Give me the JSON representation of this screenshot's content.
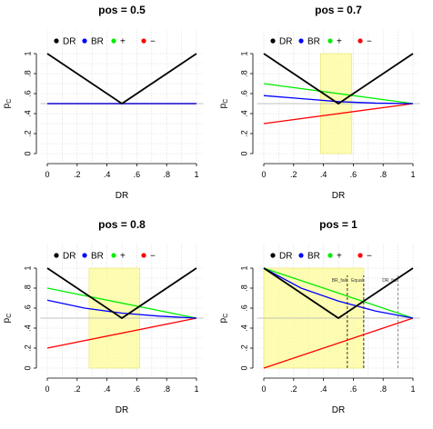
{
  "chart_data": [
    {
      "type": "line",
      "title": "pos = 0.5",
      "xlabel": "DR",
      "ylabel": "p_C",
      "xlim": [
        0,
        1
      ],
      "ylim": [
        0,
        1
      ],
      "x_ticks": [
        "0",
        ".2",
        ".4",
        ".6",
        ".8",
        "1"
      ],
      "y_ticks": [
        "0",
        ".2",
        ".4",
        ".6",
        ".8",
        "1"
      ],
      "grid": true,
      "legend": {
        "position": "top-left",
        "entries": [
          "DR",
          "BR",
          "+",
          "−"
        ]
      },
      "series": [
        {
          "name": "DR",
          "color": "#000000",
          "points": [
            [
              0,
              1
            ],
            [
              0.5,
              0.5
            ],
            [
              1,
              1
            ]
          ]
        },
        {
          "name": "BR",
          "color": "#0000ff",
          "points": [
            [
              0,
              0.5
            ],
            [
              1,
              0.5
            ]
          ]
        },
        {
          "name": "+",
          "color": "#00ee00",
          "points": [
            [
              0,
              0.5
            ],
            [
              1,
              0.5
            ]
          ]
        },
        {
          "name": "−",
          "color": "#ff0000",
          "points": [
            [
              0,
              0.5
            ],
            [
              1,
              0.5
            ]
          ]
        }
      ],
      "highlight": null,
      "annotations": []
    },
    {
      "type": "line",
      "title": "pos = 0.7",
      "xlabel": "DR",
      "ylabel": "p_C",
      "xlim": [
        0,
        1
      ],
      "ylim": [
        0,
        1
      ],
      "x_ticks": [
        "0",
        ".2",
        ".4",
        ".6",
        ".8",
        "1"
      ],
      "y_ticks": [
        "0",
        ".2",
        ".4",
        ".6",
        ".8",
        "1"
      ],
      "grid": true,
      "legend": {
        "position": "top-left",
        "entries": [
          "DR",
          "BR",
          "+",
          "−"
        ]
      },
      "series": [
        {
          "name": "DR",
          "color": "#000000",
          "points": [
            [
              0,
              1
            ],
            [
              0.5,
              0.5
            ],
            [
              1,
              1
            ]
          ]
        },
        {
          "name": "BR",
          "color": "#0000ff",
          "points": [
            [
              0,
              0.58
            ],
            [
              0.25,
              0.55
            ],
            [
              0.5,
              0.52
            ],
            [
              0.75,
              0.505
            ],
            [
              1,
              0.5
            ]
          ]
        },
        {
          "name": "+",
          "color": "#00ee00",
          "points": [
            [
              0,
              0.7
            ],
            [
              1,
              0.5
            ]
          ]
        },
        {
          "name": "−",
          "color": "#ff0000",
          "points": [
            [
              0,
              0.3
            ],
            [
              1,
              0.5
            ]
          ]
        }
      ],
      "highlight": {
        "x": [
          0.38,
          0.59
        ],
        "y": [
          0,
          1
        ],
        "color": "#ffff99"
      },
      "annotations": []
    },
    {
      "type": "line",
      "title": "pos = 0.8",
      "xlabel": "DR",
      "ylabel": "p_C",
      "xlim": [
        0,
        1
      ],
      "ylim": [
        0,
        1
      ],
      "x_ticks": [
        "0",
        ".2",
        ".4",
        ".6",
        ".8",
        "1"
      ],
      "y_ticks": [
        "0",
        ".2",
        ".4",
        ".6",
        ".8",
        "1"
      ],
      "grid": true,
      "legend": {
        "position": "top-left",
        "entries": [
          "DR",
          "BR",
          "+",
          "−"
        ]
      },
      "series": [
        {
          "name": "DR",
          "color": "#000000",
          "points": [
            [
              0,
              1
            ],
            [
              0.5,
              0.5
            ],
            [
              1,
              1
            ]
          ]
        },
        {
          "name": "BR",
          "color": "#0000ff",
          "points": [
            [
              0,
              0.68
            ],
            [
              0.25,
              0.6
            ],
            [
              0.5,
              0.55
            ],
            [
              0.75,
              0.52
            ],
            [
              1,
              0.5
            ]
          ]
        },
        {
          "name": "+",
          "color": "#00ee00",
          "points": [
            [
              0,
              0.8
            ],
            [
              1,
              0.5
            ]
          ]
        },
        {
          "name": "−",
          "color": "#ff0000",
          "points": [
            [
              0,
              0.2
            ],
            [
              1,
              0.5
            ]
          ]
        }
      ],
      "highlight": {
        "x": [
          0.28,
          0.62
        ],
        "y": [
          0,
          1
        ],
        "color": "#ffff99"
      },
      "annotations": []
    },
    {
      "type": "line",
      "title": "pos = 1",
      "xlabel": "DR",
      "ylabel": "p_C",
      "xlim": [
        0,
        1
      ],
      "ylim": [
        0,
        1
      ],
      "x_ticks": [
        "0",
        ".2",
        ".4",
        ".6",
        ".8",
        "1"
      ],
      "y_ticks": [
        "0",
        ".2",
        ".4",
        ".6",
        ".8",
        "1"
      ],
      "grid": true,
      "legend": {
        "position": "top-left",
        "entries": [
          "DR",
          "BR",
          "+",
          "−"
        ]
      },
      "series": [
        {
          "name": "DR",
          "color": "#000000",
          "points": [
            [
              0,
              1
            ],
            [
              0.5,
              0.5
            ],
            [
              1,
              1
            ]
          ]
        },
        {
          "name": "BR",
          "color": "#0000ff",
          "points": [
            [
              0,
              1
            ],
            [
              0.25,
              0.8
            ],
            [
              0.5,
              0.67
            ],
            [
              0.75,
              0.57
            ],
            [
              1,
              0.5
            ]
          ]
        },
        {
          "name": "+",
          "color": "#00ee00",
          "points": [
            [
              0,
              1
            ],
            [
              1,
              0.5
            ]
          ]
        },
        {
          "name": "−",
          "color": "#ff0000",
          "points": [
            [
              0,
              0
            ],
            [
              1,
              0.5
            ]
          ]
        }
      ],
      "highlight": {
        "x": [
          0,
          0.67
        ],
        "y": [
          0,
          1
        ],
        "color": "#ffff99"
      },
      "annotations": [
        {
          "x": 0.56,
          "label": "BR_fail",
          "style": "dashed",
          "color": "#000000"
        },
        {
          "x": 0.67,
          "label": "Equal",
          "style": "dashed",
          "color": "#000000"
        },
        {
          "x": 0.9,
          "label": "DR_fail",
          "style": "dashed",
          "color": "#777777"
        }
      ]
    }
  ]
}
